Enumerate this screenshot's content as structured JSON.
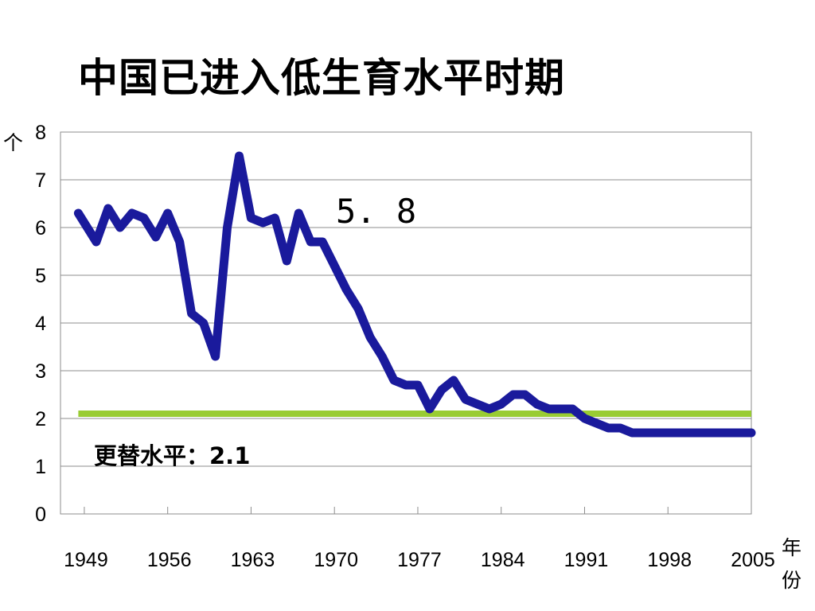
{
  "title": "中国已进入低生育水平时期",
  "chart_data": {
    "type": "line",
    "title": "中国已进入低生育水平时期",
    "ylabel": "个",
    "xlabel": "年份",
    "xlabel_chars": [
      "年",
      "份"
    ],
    "ylim": [
      0,
      8
    ],
    "xlim": [
      1947,
      2005
    ],
    "y_ticks": [
      0,
      1,
      2,
      3,
      4,
      5,
      6,
      7,
      8
    ],
    "x_ticks": [
      1949,
      1956,
      1963,
      1970,
      1977,
      1984,
      1991,
      1998,
      2005
    ],
    "grid": true,
    "series": [
      {
        "color": "#1a1a9c",
        "x": [
          1948.5,
          1949,
          1950,
          1951,
          1952,
          1953,
          1954,
          1955,
          1956,
          1957,
          1958,
          1959,
          1960,
          1961,
          1962,
          1963,
          1964,
          1965,
          1966,
          1967,
          1968,
          1969,
          1970,
          1971,
          1972,
          1973,
          1974,
          1975,
          1976,
          1977,
          1978,
          1979,
          1980,
          1981,
          1982,
          1983,
          1984,
          1985,
          1986,
          1987,
          1988,
          1989,
          1990,
          1991,
          1992,
          1993,
          1994,
          1995,
          1996,
          1997,
          1998,
          1999,
          2000,
          2001,
          2002,
          2003,
          2004,
          2005
        ],
        "values": [
          6.3,
          6.1,
          5.7,
          6.4,
          6.0,
          6.3,
          6.2,
          5.8,
          6.3,
          5.7,
          4.2,
          4.0,
          3.3,
          6.0,
          7.5,
          6.2,
          6.1,
          6.2,
          5.3,
          6.3,
          5.7,
          5.7,
          5.2,
          4.7,
          4.3,
          3.7,
          3.3,
          2.8,
          2.7,
          2.7,
          2.2,
          2.6,
          2.8,
          2.4,
          2.3,
          2.2,
          2.3,
          2.5,
          2.5,
          2.3,
          2.2,
          2.2,
          2.2,
          2.0,
          1.9,
          1.8,
          1.8,
          1.7,
          1.7,
          1.7,
          1.7,
          1.7,
          1.7,
          1.7,
          1.7,
          1.7,
          1.7,
          1.7
        ]
      },
      {
        "color": "#99cc33",
        "x": [
          1948.5,
          2005
        ],
        "values": [
          2.1,
          2.1
        ]
      }
    ],
    "annotations": [
      {
        "text": "5. 8"
      },
      {
        "text": "更替水平：2.1"
      }
    ]
  }
}
